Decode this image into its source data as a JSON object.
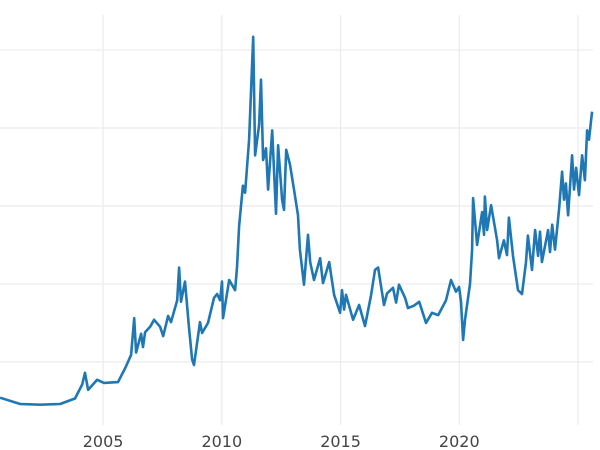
{
  "chart_data": {
    "type": "line",
    "title": "",
    "xlabel": "",
    "ylabel": "",
    "xlim": [
      2000.66,
      2025.63
    ],
    "ylim": [
      1.9,
      54.5
    ],
    "grid": true,
    "line_color": "#1f77b4",
    "grid_color": "#ebebeb",
    "x_ticks": [
      2005,
      2010,
      2015,
      2020,
      2025
    ],
    "x_tick_labels": [
      "2005",
      "2010",
      "2015",
      "2020",
      ""
    ],
    "y_ticks": [
      10,
      20,
      30,
      40,
      50
    ],
    "series": [
      {
        "x": [
          2000.66,
          2001.51,
          2002.35,
          2003.19,
          2003.82,
          2004.12,
          2004.24,
          2004.37,
          2004.75,
          2005.04,
          2005.63,
          2005.93,
          2006.18,
          2006.31,
          2006.39,
          2006.6,
          2006.68,
          2006.77,
          2006.98,
          2007.15,
          2007.4,
          2007.53,
          2007.74,
          2007.86,
          2008.12,
          2008.2,
          2008.28,
          2008.45,
          2008.62,
          2008.75,
          2008.83,
          2009.08,
          2009.17,
          2009.42,
          2009.67,
          2009.8,
          2009.93,
          2010.01,
          2010.05,
          2010.31,
          2010.56,
          2010.64,
          2010.73,
          2010.89,
          2010.98,
          2011.15,
          2011.32,
          2011.4,
          2011.57,
          2011.65,
          2011.74,
          2011.86,
          2011.95,
          2012.12,
          2012.28,
          2012.37,
          2012.54,
          2012.62,
          2012.71,
          2012.87,
          2013.04,
          2013.21,
          2013.29,
          2013.46,
          2013.63,
          2013.72,
          2013.88,
          2014.14,
          2014.26,
          2014.52,
          2014.73,
          2014.98,
          2015.06,
          2015.15,
          2015.23,
          2015.53,
          2015.78,
          2016.03,
          2016.28,
          2016.45,
          2016.58,
          2016.83,
          2016.96,
          2017.21,
          2017.34,
          2017.46,
          2017.72,
          2017.84,
          2018.09,
          2018.31,
          2018.6,
          2018.85,
          2019.11,
          2019.44,
          2019.65,
          2019.86,
          2019.99,
          2020.07,
          2020.16,
          2020.24,
          2020.45,
          2020.54,
          2020.58,
          2020.75,
          2020.96,
          2021.04,
          2021.08,
          2021.17,
          2021.34,
          2021.59,
          2021.67,
          2021.88,
          2022.01,
          2022.09,
          2022.26,
          2022.47,
          2022.64,
          2022.81,
          2022.89,
          2023.06,
          2023.19,
          2023.32,
          2023.4,
          2023.48,
          2023.74,
          2023.82,
          2023.91,
          2024.03,
          2024.2,
          2024.33,
          2024.41,
          2024.49,
          2024.58,
          2024.75,
          2024.83,
          2024.92,
          2025.04,
          2025.17,
          2025.29,
          2025.38,
          2025.46,
          2025.55,
          2025.59
        ],
        "y": [
          5.4,
          4.6,
          4.5,
          4.6,
          5.3,
          7.1,
          8.6,
          6.4,
          7.7,
          7.3,
          7.4,
          9.2,
          10.9,
          15.6,
          11.2,
          13.6,
          11.9,
          13.8,
          14.5,
          15.4,
          14.5,
          13.3,
          15.9,
          15.1,
          17.9,
          22.1,
          17.7,
          20.3,
          14.4,
          10.3,
          9.6,
          15.1,
          13.7,
          15.0,
          18.2,
          18.7,
          17.9,
          20.3,
          15.6,
          20.5,
          19.2,
          22.1,
          27.4,
          32.6,
          31.7,
          38.5,
          51.7,
          36.5,
          40.4,
          46.2,
          35.9,
          37.4,
          32.1,
          39.7,
          29.0,
          37.8,
          30.8,
          29.5,
          37.2,
          35.3,
          32.1,
          28.8,
          24.4,
          19.9,
          26.3,
          22.8,
          20.5,
          23.3,
          20.1,
          22.8,
          18.6,
          16.3,
          19.2,
          16.7,
          18.6,
          15.4,
          17.3,
          14.6,
          18.5,
          21.8,
          22.1,
          17.3,
          18.8,
          19.5,
          17.6,
          19.9,
          18.2,
          16.9,
          17.2,
          17.7,
          15.0,
          16.3,
          16.0,
          17.9,
          20.5,
          19.0,
          19.6,
          17.7,
          12.8,
          15.4,
          20.0,
          24.4,
          31.0,
          25.0,
          29.2,
          26.3,
          31.2,
          26.9,
          30.1,
          25.6,
          23.3,
          25.6,
          23.7,
          28.5,
          23.6,
          19.2,
          18.7,
          22.8,
          26.2,
          21.8,
          26.9,
          23.6,
          26.7,
          22.8,
          26.9,
          24.1,
          27.6,
          24.4,
          29.5,
          34.4,
          30.8,
          32.9,
          28.8,
          36.5,
          32.1,
          34.9,
          31.4,
          36.5,
          33.3,
          39.7,
          38.5,
          41.0,
          42.1
        ]
      }
    ]
  }
}
